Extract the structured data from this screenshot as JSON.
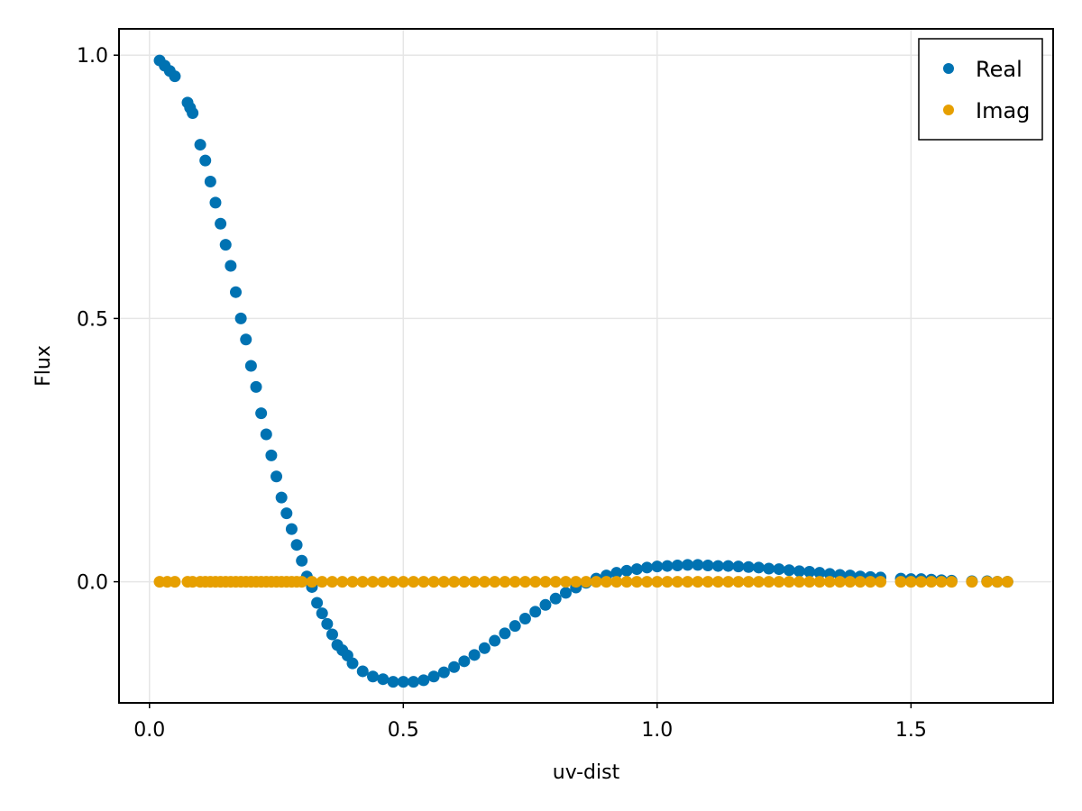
{
  "chart_data": {
    "type": "scatter",
    "title": "",
    "xlabel": "uv-dist",
    "ylabel": "Flux",
    "xlim": [
      -0.06,
      1.78
    ],
    "ylim": [
      -0.23,
      1.05
    ],
    "xticks": [
      0.0,
      0.5,
      1.0,
      1.5
    ],
    "xtick_labels": [
      "0.0",
      "0.5",
      "1.0",
      "1.5"
    ],
    "yticks": [
      0.0,
      0.5,
      1.0
    ],
    "ytick_labels": [
      "0.0",
      "0.5",
      "1.0"
    ],
    "grid": true,
    "legend_position": "top-right",
    "series": [
      {
        "name": "Real",
        "color": "#0072B2",
        "x": [
          0.02,
          0.03,
          0.04,
          0.05,
          0.075,
          0.08,
          0.085,
          0.1,
          0.11,
          0.12,
          0.13,
          0.14,
          0.15,
          0.16,
          0.17,
          0.18,
          0.19,
          0.2,
          0.21,
          0.22,
          0.23,
          0.24,
          0.25,
          0.26,
          0.27,
          0.28,
          0.29,
          0.3,
          0.31,
          0.32,
          0.33,
          0.34,
          0.35,
          0.36,
          0.37,
          0.38,
          0.39,
          0.4,
          0.42,
          0.44,
          0.46,
          0.48,
          0.5,
          0.52,
          0.54,
          0.56,
          0.58,
          0.6,
          0.62,
          0.64,
          0.66,
          0.68,
          0.7,
          0.72,
          0.74,
          0.76,
          0.78,
          0.8,
          0.82,
          0.84,
          0.86,
          0.88,
          0.9,
          0.92,
          0.94,
          0.96,
          0.98,
          1.0,
          1.02,
          1.04,
          1.06,
          1.08,
          1.1,
          1.12,
          1.14,
          1.16,
          1.18,
          1.2,
          1.22,
          1.24,
          1.26,
          1.28,
          1.3,
          1.32,
          1.34,
          1.36,
          1.38,
          1.4,
          1.42,
          1.44,
          1.48,
          1.5,
          1.52,
          1.54,
          1.56,
          1.58,
          1.62,
          1.65,
          1.67,
          1.69
        ],
        "y": [
          0.99,
          0.98,
          0.97,
          0.96,
          0.91,
          0.9,
          0.89,
          0.83,
          0.8,
          0.76,
          0.72,
          0.68,
          0.64,
          0.6,
          0.55,
          0.5,
          0.46,
          0.41,
          0.37,
          0.32,
          0.28,
          0.24,
          0.2,
          0.16,
          0.13,
          0.1,
          0.07,
          0.04,
          0.01,
          -0.01,
          -0.04,
          -0.06,
          -0.08,
          -0.1,
          -0.12,
          -0.13,
          -0.14,
          -0.155,
          -0.17,
          -0.18,
          -0.185,
          -0.19,
          -0.19,
          -0.19,
          -0.187,
          -0.18,
          -0.172,
          -0.162,
          -0.151,
          -0.139,
          -0.126,
          -0.112,
          -0.098,
          -0.084,
          -0.07,
          -0.057,
          -0.044,
          -0.032,
          -0.021,
          -0.011,
          -0.002,
          0.006,
          0.012,
          0.017,
          0.021,
          0.024,
          0.027,
          0.029,
          0.03,
          0.031,
          0.032,
          0.032,
          0.031,
          0.03,
          0.03,
          0.029,
          0.028,
          0.027,
          0.025,
          0.024,
          0.022,
          0.02,
          0.019,
          0.017,
          0.015,
          0.013,
          0.012,
          0.01,
          0.009,
          0.008,
          0.006,
          0.005,
          0.005,
          0.004,
          0.003,
          0.002,
          0.001,
          0.001,
          0.0,
          0.0
        ]
      },
      {
        "name": "Imag",
        "color": "#E69F00",
        "x": [
          0.02,
          0.035,
          0.05,
          0.075,
          0.085,
          0.1,
          0.11,
          0.12,
          0.13,
          0.14,
          0.15,
          0.16,
          0.17,
          0.18,
          0.19,
          0.2,
          0.21,
          0.22,
          0.23,
          0.24,
          0.25,
          0.26,
          0.27,
          0.28,
          0.29,
          0.3,
          0.32,
          0.34,
          0.36,
          0.38,
          0.4,
          0.42,
          0.44,
          0.46,
          0.48,
          0.5,
          0.52,
          0.54,
          0.56,
          0.58,
          0.6,
          0.62,
          0.64,
          0.66,
          0.68,
          0.7,
          0.72,
          0.74,
          0.76,
          0.78,
          0.8,
          0.82,
          0.84,
          0.86,
          0.88,
          0.9,
          0.92,
          0.94,
          0.96,
          0.98,
          1.0,
          1.02,
          1.04,
          1.06,
          1.08,
          1.1,
          1.12,
          1.14,
          1.16,
          1.18,
          1.2,
          1.22,
          1.24,
          1.26,
          1.28,
          1.3,
          1.32,
          1.34,
          1.36,
          1.38,
          1.4,
          1.42,
          1.44,
          1.48,
          1.5,
          1.52,
          1.54,
          1.56,
          1.58,
          1.62,
          1.65,
          1.67,
          1.69
        ],
        "y": [
          0.0,
          0.0,
          0.0,
          0.0,
          0.0,
          0.0,
          0.0,
          0.0,
          0.0,
          0.0,
          0.0,
          0.0,
          0.0,
          0.0,
          0.0,
          0.0,
          0.0,
          0.0,
          0.0,
          0.0,
          0.0,
          0.0,
          0.0,
          0.0,
          0.0,
          0.0,
          0.0,
          0.0,
          0.0,
          0.0,
          0.0,
          0.0,
          0.0,
          0.0,
          0.0,
          0.0,
          0.0,
          0.0,
          0.0,
          0.0,
          0.0,
          0.0,
          0.0,
          0.0,
          0.0,
          0.0,
          0.0,
          0.0,
          0.0,
          0.0,
          0.0,
          0.0,
          0.0,
          0.0,
          0.0,
          0.0,
          0.0,
          0.0,
          0.0,
          0.0,
          0.0,
          0.0,
          0.0,
          0.0,
          0.0,
          0.0,
          0.0,
          0.0,
          0.0,
          0.0,
          0.0,
          0.0,
          0.0,
          0.0,
          0.0,
          0.0,
          0.0,
          0.0,
          0.0,
          0.0,
          0.0,
          0.0,
          0.0,
          0.0,
          0.0,
          0.0,
          0.0,
          0.0,
          0.0,
          0.0,
          0.0,
          0.0,
          0.0
        ]
      }
    ]
  }
}
